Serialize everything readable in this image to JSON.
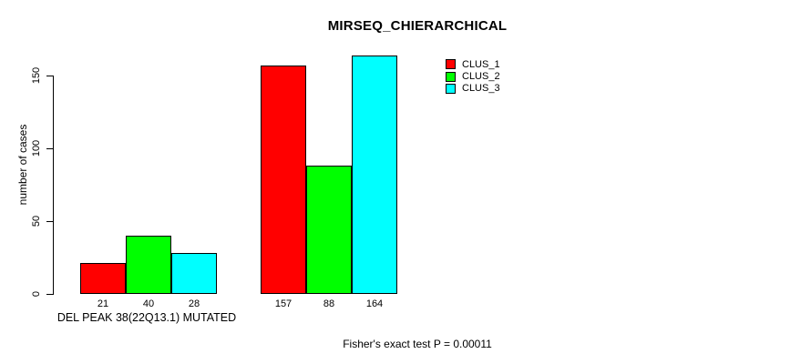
{
  "chart_data": {
    "type": "bar",
    "title": "MIRSEQ_CHIERARCHICAL",
    "ylabel": "number of cases",
    "ylim": [
      0,
      150
    ],
    "yticks": [
      0,
      50,
      100,
      150
    ],
    "categories": [
      "DEL PEAK 38(22Q13.1) MUTATED",
      ""
    ],
    "series": [
      {
        "name": "CLUS_1",
        "color": "#ff0000",
        "values": [
          21,
          157
        ]
      },
      {
        "name": "CLUS_2",
        "color": "#00ff00",
        "values": [
          40,
          88
        ]
      },
      {
        "name": "CLUS_3",
        "color": "#00ffff",
        "values": [
          28,
          164
        ]
      }
    ],
    "bar_value_labels": [
      [
        21,
        40,
        28
      ],
      [
        157,
        88,
        164
      ]
    ],
    "group_label": "DEL PEAK 38(22Q13.1) MUTATED",
    "annotation": "Fisher's exact test P = 0.00011",
    "legend_position": "top-right",
    "grid": false,
    "background_color": "#ffffff",
    "axis_color": "#000000"
  }
}
